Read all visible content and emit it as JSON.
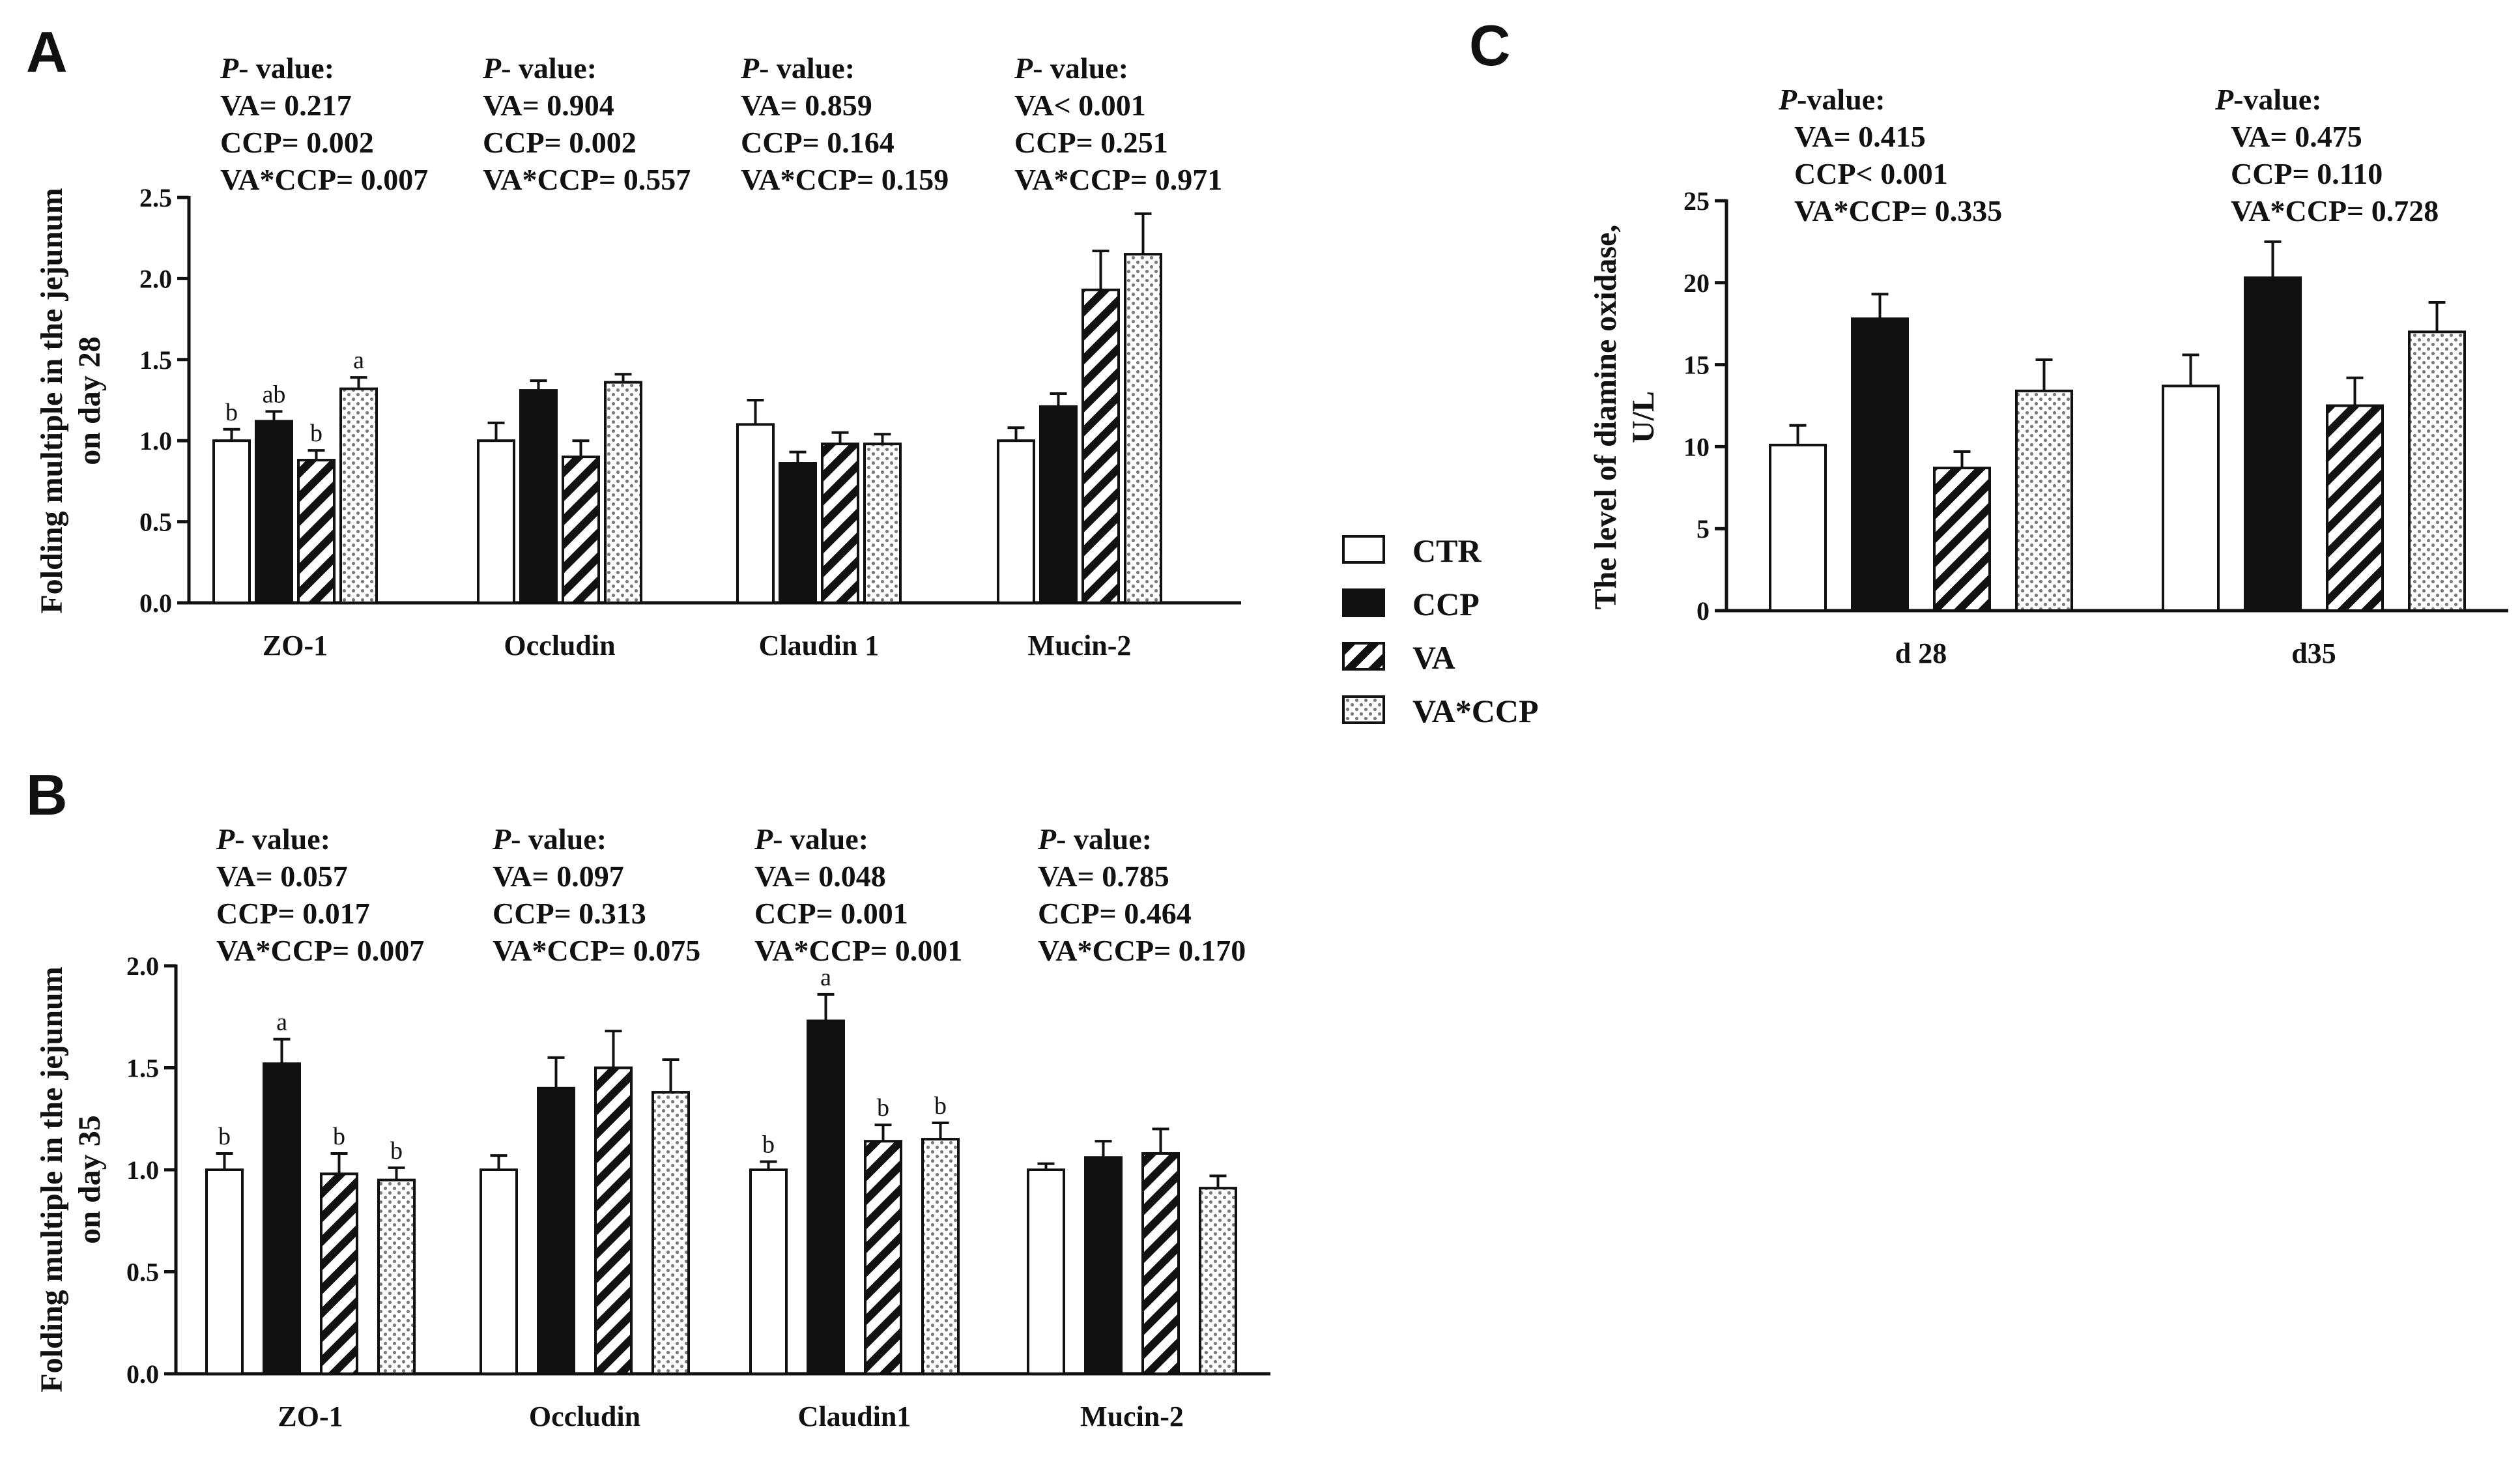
{
  "legend": [
    {
      "label": "CTR",
      "fill": "white"
    },
    {
      "label": "CCP",
      "fill": "black"
    },
    {
      "label": "VA",
      "fill": "hatch"
    },
    {
      "label": "VA*CCP",
      "fill": "dots"
    }
  ],
  "chart_data": [
    {
      "id": "A",
      "type": "bar",
      "panel_label": "A",
      "ylabel_lines": [
        "Folding multiple in the jejunum",
        "on day 28"
      ],
      "ylim": [
        0,
        2.5
      ],
      "yticks": [
        "0.0",
        "0.5",
        "1.0",
        "1.5",
        "2.0",
        "2.5"
      ],
      "yticks_values": [
        0,
        0.5,
        1.0,
        1.5,
        2.0,
        2.5
      ],
      "categories": [
        "ZO-1",
        "Occludin",
        "Claudin 1",
        "Mucin-2"
      ],
      "series": [
        {
          "name": "CTR",
          "values": [
            1.0,
            1.0,
            1.1,
            1.0
          ],
          "errors": [
            0.07,
            0.11,
            0.15,
            0.08
          ]
        },
        {
          "name": "CCP",
          "values": [
            1.12,
            1.31,
            0.86,
            1.21
          ],
          "errors": [
            0.06,
            0.06,
            0.07,
            0.08
          ]
        },
        {
          "name": "VA",
          "values": [
            0.88,
            0.9,
            0.98,
            1.93
          ],
          "errors": [
            0.06,
            0.1,
            0.07,
            0.24
          ]
        },
        {
          "name": "VA*CCP",
          "values": [
            1.32,
            1.36,
            0.98,
            2.15
          ],
          "errors": [
            0.07,
            0.05,
            0.06,
            0.25
          ]
        }
      ],
      "sig_letters": [
        [
          "b",
          "ab",
          "b",
          "a"
        ],
        [
          "",
          "",
          "",
          ""
        ],
        [
          "",
          "",
          "",
          ""
        ],
        [
          "",
          "",
          "",
          ""
        ]
      ],
      "pvalues": [
        {
          "header": "P- value:",
          "lines": [
            "VA= 0.217",
            "CCP= 0.002",
            "VA*CCP= 0.007"
          ]
        },
        {
          "header": "P- value:",
          "lines": [
            "VA= 0.904",
            "CCP= 0.002",
            "VA*CCP= 0.557"
          ]
        },
        {
          "header": "P- value:",
          "lines": [
            "VA= 0.859",
            "CCP= 0.164",
            "VA*CCP= 0.159"
          ]
        },
        {
          "header": "P- value:",
          "lines": [
            "VA< 0.001",
            "CCP= 0.251",
            "VA*CCP= 0.971"
          ]
        }
      ]
    },
    {
      "id": "B",
      "type": "bar",
      "panel_label": "B",
      "ylabel_lines": [
        "Folding multiple in the jejunum",
        "on day 35"
      ],
      "ylim": [
        0,
        2.0
      ],
      "yticks": [
        "0.0",
        "0.5",
        "1.0",
        "1.5",
        "2.0"
      ],
      "yticks_values": [
        0,
        0.5,
        1.0,
        1.5,
        2.0
      ],
      "categories": [
        "ZO-1",
        "Occludin",
        "Claudin1",
        "Mucin-2"
      ],
      "series": [
        {
          "name": "CTR",
          "values": [
            1.0,
            1.0,
            1.0,
            1.0
          ],
          "errors": [
            0.08,
            0.07,
            0.04,
            0.03
          ]
        },
        {
          "name": "CCP",
          "values": [
            1.52,
            1.4,
            1.73,
            1.06
          ],
          "errors": [
            0.12,
            0.15,
            0.13,
            0.08
          ]
        },
        {
          "name": "VA",
          "values": [
            0.98,
            1.5,
            1.14,
            1.08
          ],
          "errors": [
            0.1,
            0.18,
            0.08,
            0.12
          ]
        },
        {
          "name": "VA*CCP",
          "values": [
            0.95,
            1.38,
            1.15,
            0.91
          ],
          "errors": [
            0.06,
            0.16,
            0.08,
            0.06
          ]
        }
      ],
      "sig_letters": [
        [
          "b",
          "a",
          "b",
          "b"
        ],
        [
          "",
          "",
          "",
          ""
        ],
        [
          "b",
          "a",
          "b",
          "b"
        ],
        [
          "",
          "",
          "",
          ""
        ]
      ],
      "pvalues": [
        {
          "header": "P- value:",
          "lines": [
            "VA= 0.057",
            "CCP= 0.017",
            "VA*CCP= 0.007"
          ]
        },
        {
          "header": "P- value:",
          "lines": [
            "VA= 0.097",
            "CCP= 0.313",
            "VA*CCP= 0.075"
          ]
        },
        {
          "header": "P- value:",
          "lines": [
            "VA= 0.048",
            "CCP= 0.001",
            "VA*CCP= 0.001"
          ]
        },
        {
          "header": "P- value:",
          "lines": [
            "VA= 0.785",
            "CCP= 0.464",
            "VA*CCP= 0.170"
          ]
        }
      ]
    },
    {
      "id": "C",
      "type": "bar",
      "panel_label": "C",
      "ylabel_lines": [
        "The level of diamine oxidase,",
        "U/L"
      ],
      "ylim": [
        0,
        25
      ],
      "yticks": [
        "0",
        "5",
        "10",
        "15",
        "20",
        "25"
      ],
      "yticks_values": [
        0,
        5,
        10,
        15,
        20,
        25
      ],
      "categories": [
        "d 28",
        "d35"
      ],
      "series": [
        {
          "name": "CTR",
          "values": [
            10.1,
            13.7
          ],
          "errors": [
            1.2,
            1.9
          ]
        },
        {
          "name": "CCP",
          "values": [
            17.8,
            20.3
          ],
          "errors": [
            1.5,
            2.2
          ]
        },
        {
          "name": "VA",
          "values": [
            8.7,
            12.5
          ],
          "errors": [
            1.0,
            1.7
          ]
        },
        {
          "name": "VA*CCP",
          "values": [
            13.4,
            17.0
          ],
          "errors": [
            1.9,
            1.8
          ]
        }
      ],
      "sig_letters": [
        [
          "",
          "",
          "",
          ""
        ],
        [
          "",
          "",
          "",
          ""
        ]
      ],
      "pvalues": [
        {
          "header": "P-value:",
          "lines": [
            "VA= 0.415",
            "CCP< 0.001",
            "VA*CCP= 0.335"
          ]
        },
        {
          "header": "P-value:",
          "lines": [
            "VA= 0.475",
            "CCP= 0.110",
            "VA*CCP= 0.728"
          ]
        }
      ]
    }
  ]
}
